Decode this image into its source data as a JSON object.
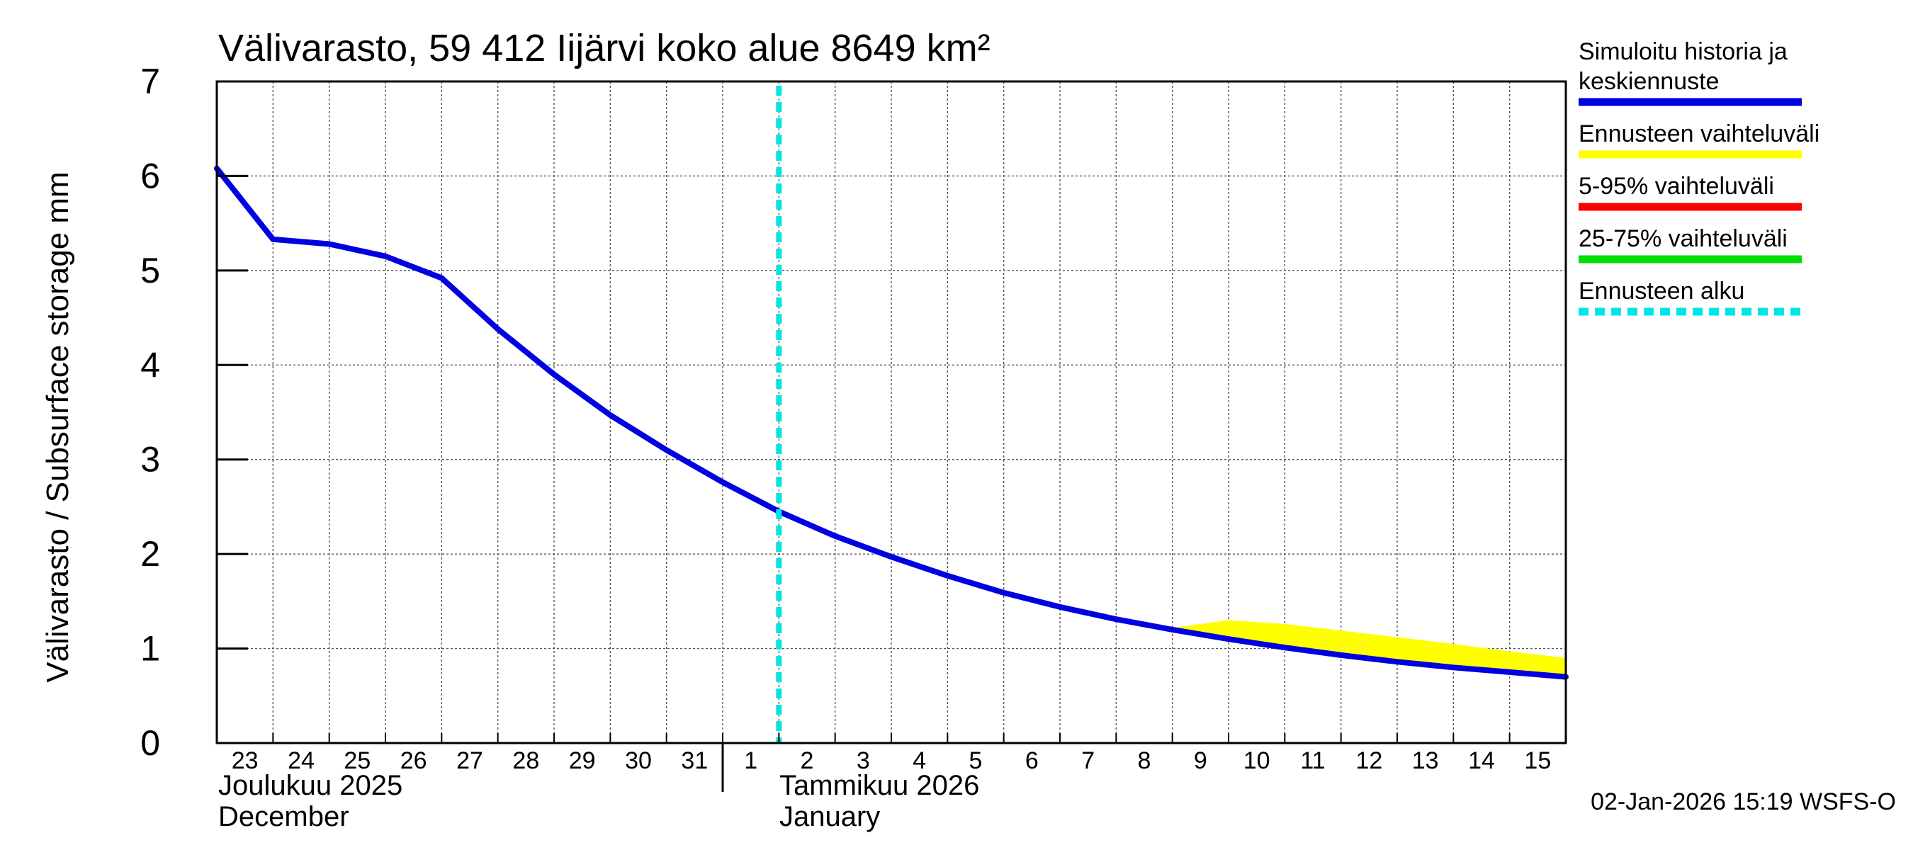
{
  "chart_data": {
    "type": "line",
    "title": "Välivarasto, 59 412 Iijärvi koko alue 8649 km²",
    "ylabel": "Välivarasto / Subsurface storage  mm",
    "ylim": [
      0,
      7
    ],
    "yticks": [
      "0",
      "1",
      "2",
      "3",
      "4",
      "5",
      "6",
      "7"
    ],
    "grid": true,
    "x_day_labels": [
      "23",
      "24",
      "25",
      "26",
      "27",
      "28",
      "29",
      "30",
      "31",
      "1",
      "2",
      "3",
      "4",
      "5",
      "6",
      "7",
      "8",
      "9",
      "10",
      "11",
      "12",
      "13",
      "14",
      "15"
    ],
    "month_labels": {
      "december_fi": "Joulukuu  2025",
      "december_en": "December",
      "january_fi": "Tammikuu  2026",
      "january_en": "January"
    },
    "forecast_start_day_index": 10,
    "series": [
      {
        "name": "Simuloitu historia ja keskiennuste",
        "color": "#0000e0",
        "values": [
          6.08,
          5.33,
          5.28,
          5.15,
          4.92,
          4.38,
          3.9,
          3.47,
          3.1,
          2.76,
          2.45,
          2.19,
          1.97,
          1.77,
          1.59,
          1.44,
          1.31,
          1.2,
          1.1,
          1.01,
          0.93,
          0.86,
          0.8,
          0.75,
          0.7
        ]
      }
    ],
    "band": {
      "name": "Ennusteen vaihteluväli",
      "color": "#ffff00",
      "upper": [
        null,
        null,
        null,
        null,
        null,
        null,
        null,
        null,
        null,
        null,
        null,
        null,
        null,
        null,
        null,
        null,
        null,
        1.22,
        1.3,
        1.26,
        1.19,
        1.12,
        1.05,
        0.97,
        0.9
      ],
      "lower": [
        null,
        null,
        null,
        null,
        null,
        null,
        null,
        null,
        null,
        null,
        null,
        null,
        null,
        null,
        null,
        null,
        null,
        1.2,
        1.1,
        1.01,
        0.93,
        0.86,
        0.8,
        0.75,
        0.7
      ]
    },
    "legend": [
      {
        "label": "Simuloitu historia ja keskiennuste",
        "color": "#0000e0",
        "style": "solid"
      },
      {
        "label": "Ennusteen vaihteluväli",
        "color": "#ffff00",
        "style": "solid"
      },
      {
        "label": "5-95% vaihteluväli",
        "color": "#ff0000",
        "style": "solid"
      },
      {
        "label": "25-75% vaihteluväli",
        "color": "#00dd00",
        "style": "solid"
      },
      {
        "label": "Ennusteen alku",
        "color": "#00e5e5",
        "style": "dashed"
      }
    ],
    "footer": "02-Jan-2026 15:19 WSFS-O"
  }
}
